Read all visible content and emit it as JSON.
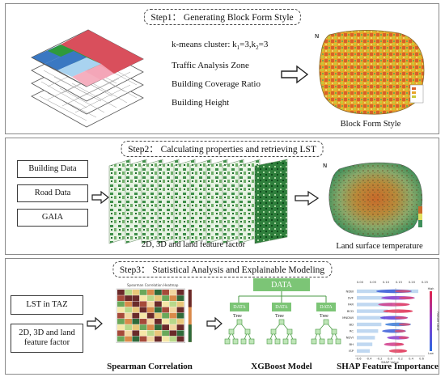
{
  "step1": {
    "title": "Step1： Generating Block Form Style",
    "kmeans_prefix": "k-means cluster: k",
    "k1_sub": "1",
    "k_mid": "=3,k",
    "k2_sub": "2",
    "k_end": "=3",
    "items": [
      "Traffic Analysis Zone",
      "Building Coverage Ratio",
      "Building Height"
    ],
    "output_caption": "Block Form Style"
  },
  "step2": {
    "title": "Step2： Calculating properties and retrieving LST",
    "inputs": [
      "Building Data",
      "Road Data",
      "GAIA"
    ],
    "layers_caption": "2D, 3D and land feature factor",
    "output_caption": "Land surface temperature"
  },
  "step3": {
    "title": "Step3： Statistical Analysis and Explainable Modeling",
    "inputs": [
      "LST in TAZ",
      "2D, 3D and land feature factor"
    ],
    "spearman_caption": "Spearman Correlation",
    "xgb_caption": "XGBoost Model",
    "xgb_data": "DATA",
    "xgb_tree_label": "Tree",
    "shap_caption": "SHAP Feature Importance",
    "shap_features": [
      "NDBI",
      "SVF",
      "FAR",
      "BCD",
      "MNDWI",
      "BD",
      "RC",
      "NDVI",
      "BH",
      "ISP"
    ],
    "shap_axis_ticks": [
      "-0.6",
      "-0.4",
      "-0.2",
      "0.0",
      "0.2",
      "0.4",
      "0.6"
    ],
    "shap_top_ticks": [
      "0.00",
      "0.05",
      "0.10",
      "0.15",
      "0.20",
      "0.25"
    ],
    "shap_xlabel": "SHAP Value",
    "shap_color_label": "Feature value",
    "shap_high": "High",
    "shap_low": "Low",
    "heatmap_title": "Spearman Correlation Heatmap"
  },
  "colors": {
    "step1_red": "#d94f5c",
    "step1_pink": "#f4a6b8",
    "step1_green": "#2f9a3c",
    "step1_blue": "#3a78c2",
    "step1_lightblue": "#a9d3f0",
    "xgb_green": "#7cc576",
    "shap_bar": "#4a8fd6",
    "arrow": "#222222"
  }
}
